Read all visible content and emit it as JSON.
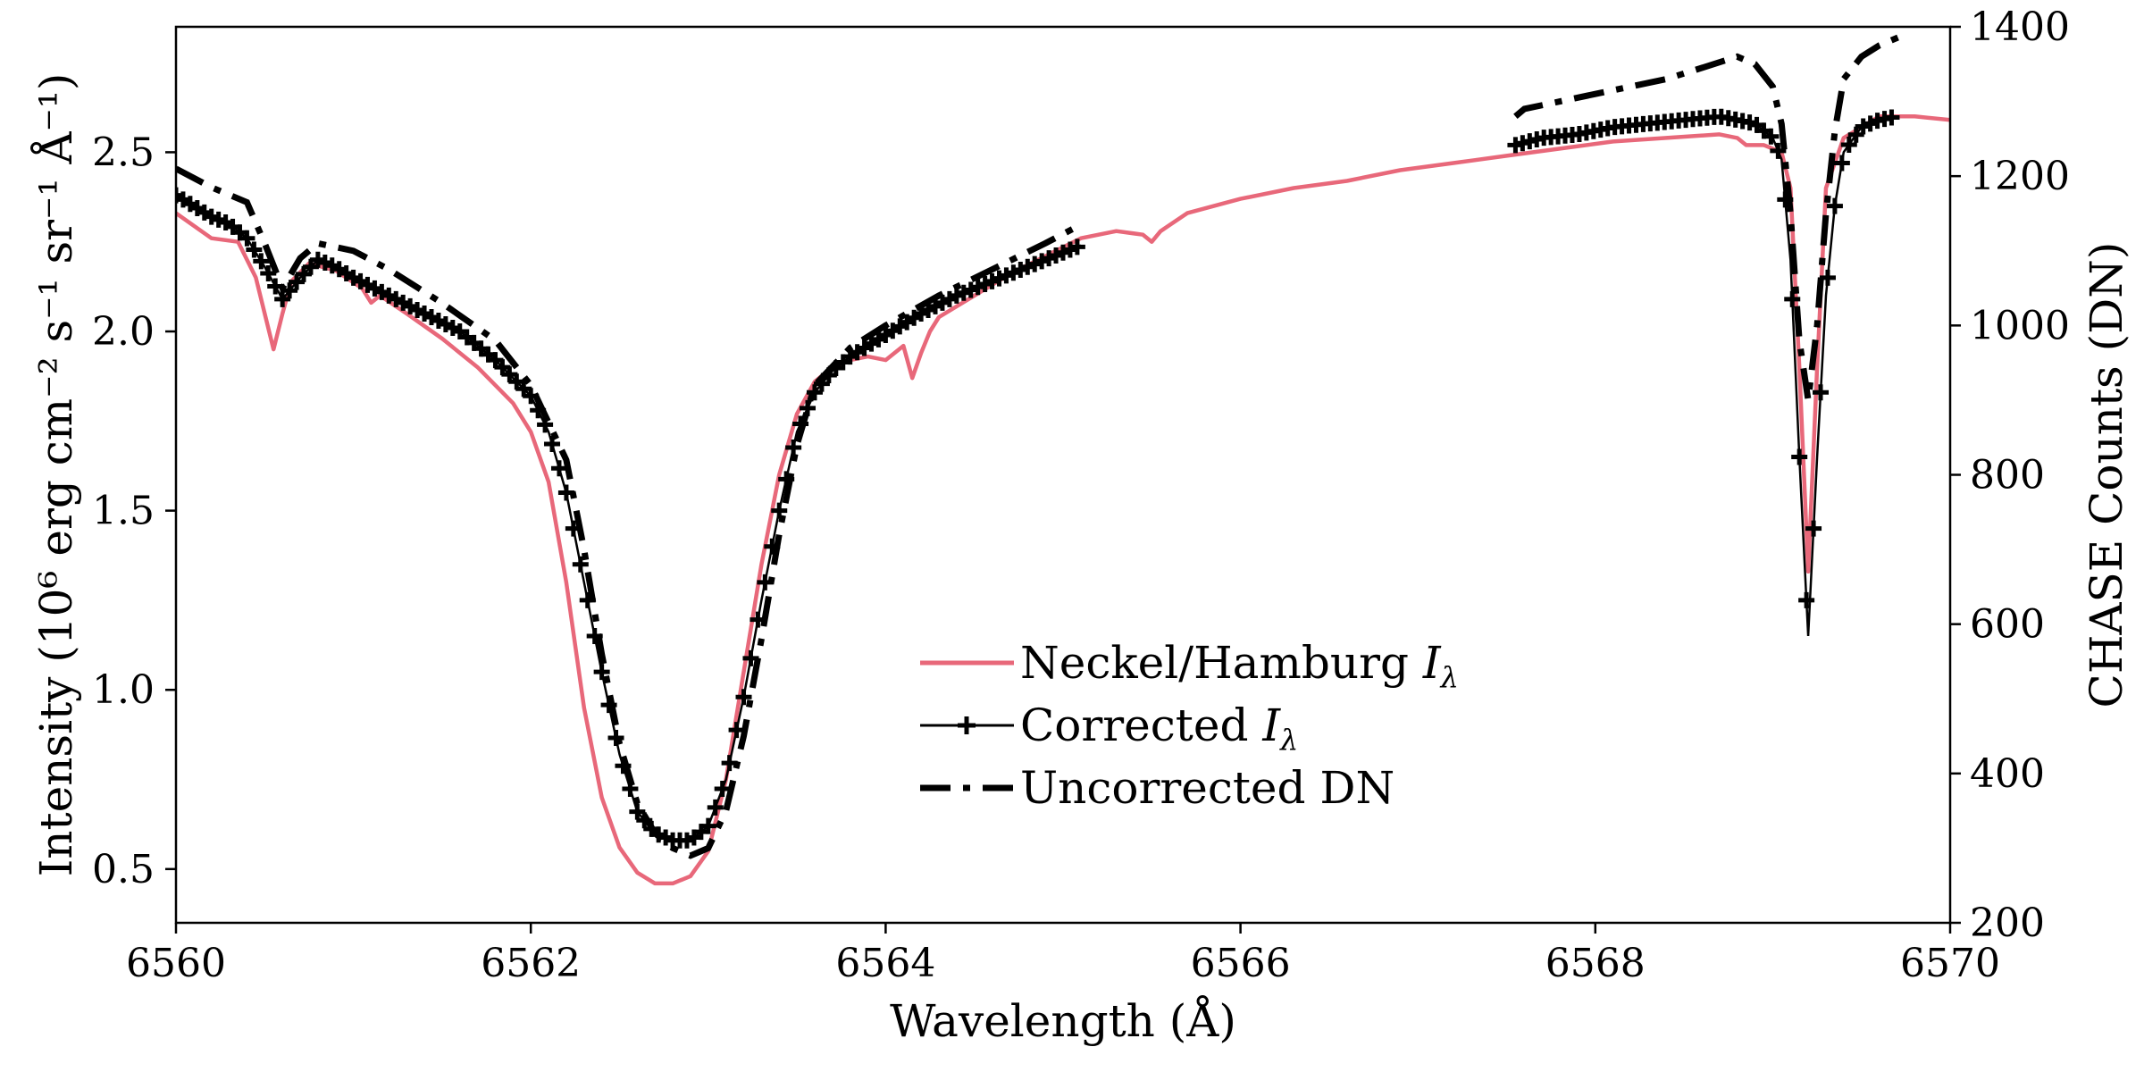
{
  "chart_data": {
    "type": "line",
    "xlabel": "Wavelength (Å)",
    "ylabel": "Intensity (10⁶ erg cm⁻² s⁻¹ sr⁻¹ Å⁻¹)",
    "ylabel_right": "CHASE Counts (DN)",
    "xlim": [
      6560,
      6570
    ],
    "ylim": [
      0.35,
      2.85
    ],
    "ylim_right": [
      200,
      1400
    ],
    "xticks": [
      6560,
      6562,
      6564,
      6566,
      6568,
      6570
    ],
    "xtick_labels": [
      "6560",
      "6562",
      "6564",
      "6566",
      "6568",
      "6570"
    ],
    "yticks": [
      0.5,
      1.0,
      1.5,
      2.0,
      2.5
    ],
    "ytick_labels": [
      "0.5",
      "1.0",
      "1.5",
      "2.0",
      "2.5"
    ],
    "yticks_right": [
      200,
      400,
      600,
      800,
      1000,
      1200,
      1400
    ],
    "ytick_labels_right": [
      "200",
      "400",
      "600",
      "800",
      "1000",
      "1200",
      "1400"
    ],
    "legend_position": "center-right",
    "series": [
      {
        "name": "Neckel/Hamburg Iλ",
        "legend_base": "Neckel/Hamburg ",
        "legend_var": "I",
        "legend_sub": "λ",
        "axis": "left",
        "color": "#e8687a",
        "style": "solid",
        "x": [
          6560.0,
          6560.2,
          6560.35,
          6560.45,
          6560.55,
          6560.6,
          6560.65,
          6560.75,
          6560.9,
          6561.05,
          6561.1,
          6561.15,
          6561.3,
          6561.5,
          6561.7,
          6561.9,
          6562.0,
          6562.1,
          6562.2,
          6562.3,
          6562.4,
          6562.5,
          6562.6,
          6562.7,
          6562.8,
          6562.9,
          6563.0,
          6563.1,
          6563.2,
          6563.3,
          6563.4,
          6563.5,
          6563.6,
          6563.7,
          6563.8,
          6563.9,
          6564.0,
          6564.1,
          6564.15,
          6564.2,
          6564.25,
          6564.3,
          6564.5,
          6564.7,
          6564.9,
          6565.1,
          6565.3,
          6565.45,
          6565.5,
          6565.55,
          6565.7,
          6566.0,
          6566.3,
          6566.6,
          6566.9,
          6567.2,
          6567.5,
          6567.8,
          6568.1,
          6568.4,
          6568.7,
          6568.8,
          6568.85,
          6568.95,
          6569.05,
          6569.1,
          6569.15,
          6569.2,
          6569.25,
          6569.3,
          6569.4,
          6569.6,
          6569.8,
          6570.0
        ],
        "y": [
          2.33,
          2.26,
          2.25,
          2.15,
          1.95,
          2.05,
          2.14,
          2.19,
          2.17,
          2.12,
          2.08,
          2.1,
          2.05,
          1.98,
          1.9,
          1.8,
          1.72,
          1.58,
          1.3,
          0.95,
          0.7,
          0.56,
          0.49,
          0.46,
          0.46,
          0.48,
          0.55,
          0.75,
          1.05,
          1.35,
          1.6,
          1.77,
          1.86,
          1.9,
          1.92,
          1.93,
          1.92,
          1.96,
          1.87,
          1.94,
          2.0,
          2.04,
          2.1,
          2.16,
          2.21,
          2.26,
          2.28,
          2.27,
          2.25,
          2.28,
          2.33,
          2.37,
          2.4,
          2.42,
          2.45,
          2.47,
          2.49,
          2.51,
          2.53,
          2.54,
          2.55,
          2.54,
          2.52,
          2.52,
          2.5,
          2.4,
          1.9,
          1.33,
          1.9,
          2.4,
          2.54,
          2.6,
          2.6,
          2.59
        ]
      },
      {
        "name": "Corrected Iλ",
        "legend_base": "Corrected ",
        "legend_var": "I",
        "legend_sub": "λ",
        "axis": "left",
        "color": "#000000",
        "style": "solid-plus",
        "segments": [
          {
            "x": [
              6560.0,
              6560.1,
              6560.2,
              6560.3,
              6560.4,
              6560.5,
              6560.6,
              6560.7,
              6560.8,
              6560.9,
              6561.0,
              6561.2,
              6561.4,
              6561.6,
              6561.8,
              6562.0,
              6562.1,
              6562.2,
              6562.3,
              6562.4,
              6562.5,
              6562.6,
              6562.7,
              6562.8,
              6562.9,
              6563.0,
              6563.1,
              6563.2,
              6563.3,
              6563.4,
              6563.5,
              6563.6,
              6563.7,
              6563.8,
              6563.9,
              6564.0,
              6564.2,
              6564.4,
              6564.6,
              6564.8,
              6565.0,
              6565.1
            ],
            "y": [
              2.38,
              2.35,
              2.32,
              2.3,
              2.26,
              2.18,
              2.09,
              2.15,
              2.2,
              2.18,
              2.15,
              2.1,
              2.05,
              2.0,
              1.92,
              1.82,
              1.72,
              1.55,
              1.3,
              1.05,
              0.82,
              0.66,
              0.6,
              0.58,
              0.58,
              0.62,
              0.75,
              0.98,
              1.25,
              1.5,
              1.72,
              1.83,
              1.89,
              1.93,
              1.96,
              1.99,
              2.05,
              2.1,
              2.14,
              2.18,
              2.22,
              2.24
            ]
          },
          {
            "x": [
              6567.55,
              6567.7,
              6567.9,
              6568.1,
              6568.3,
              6568.5,
              6568.7,
              6568.9,
              6569.0,
              6569.05,
              6569.1,
              6569.15,
              6569.2,
              6569.25,
              6569.3,
              6569.35,
              6569.4,
              6569.5,
              6569.6,
              6569.7
            ],
            "y": [
              2.52,
              2.54,
              2.55,
              2.57,
              2.58,
              2.59,
              2.6,
              2.58,
              2.54,
              2.48,
              2.2,
              1.65,
              1.15,
              1.65,
              2.1,
              2.35,
              2.5,
              2.57,
              2.59,
              2.6
            ]
          }
        ]
      },
      {
        "name": "Uncorrected DN",
        "legend_base": "Uncorrected DN",
        "legend_var": "",
        "legend_sub": "",
        "axis": "right",
        "color": "#000000",
        "style": "dashdot",
        "segments": [
          {
            "x": [
              6560.0,
              6560.2,
              6560.4,
              6560.5,
              6560.6,
              6560.7,
              6560.8,
              6561.0,
              6561.2,
              6561.5,
              6561.8,
              6562.0,
              6562.2,
              6562.3,
              6562.4,
              6562.5,
              6562.6,
              6562.7,
              6562.8,
              6562.9,
              6563.0,
              6563.1,
              6563.2,
              6563.3,
              6563.4,
              6563.5,
              6563.6,
              6563.8,
              6564.0,
              6564.3,
              6564.6,
              6564.9,
              6565.1
            ],
            "y": [
              1210,
              1185,
              1165,
              1110,
              1050,
              1090,
              1110,
              1100,
              1075,
              1030,
              980,
              920,
              820,
              700,
              560,
              440,
              360,
              320,
              300,
              290,
              300,
              350,
              450,
              580,
              720,
              840,
              920,
              970,
              1000,
              1040,
              1075,
              1110,
              1135
            ]
          },
          {
            "x": [
              6567.55,
              6567.6,
              6567.8,
              6568.0,
              6568.2,
              6568.4,
              6568.6,
              6568.8,
              6568.9,
              6569.0,
              6569.05,
              6569.1,
              6569.15,
              6569.2,
              6569.25,
              6569.3,
              6569.35,
              6569.4,
              6569.5,
              6569.6,
              6569.7,
              6569.75
            ],
            "y": [
              1280,
              1290,
              1300,
              1310,
              1320,
              1330,
              1345,
              1360,
              1350,
              1320,
              1270,
              1150,
              980,
              900,
              1000,
              1150,
              1260,
              1330,
              1360,
              1375,
              1385,
              1390
            ]
          }
        ]
      }
    ]
  }
}
